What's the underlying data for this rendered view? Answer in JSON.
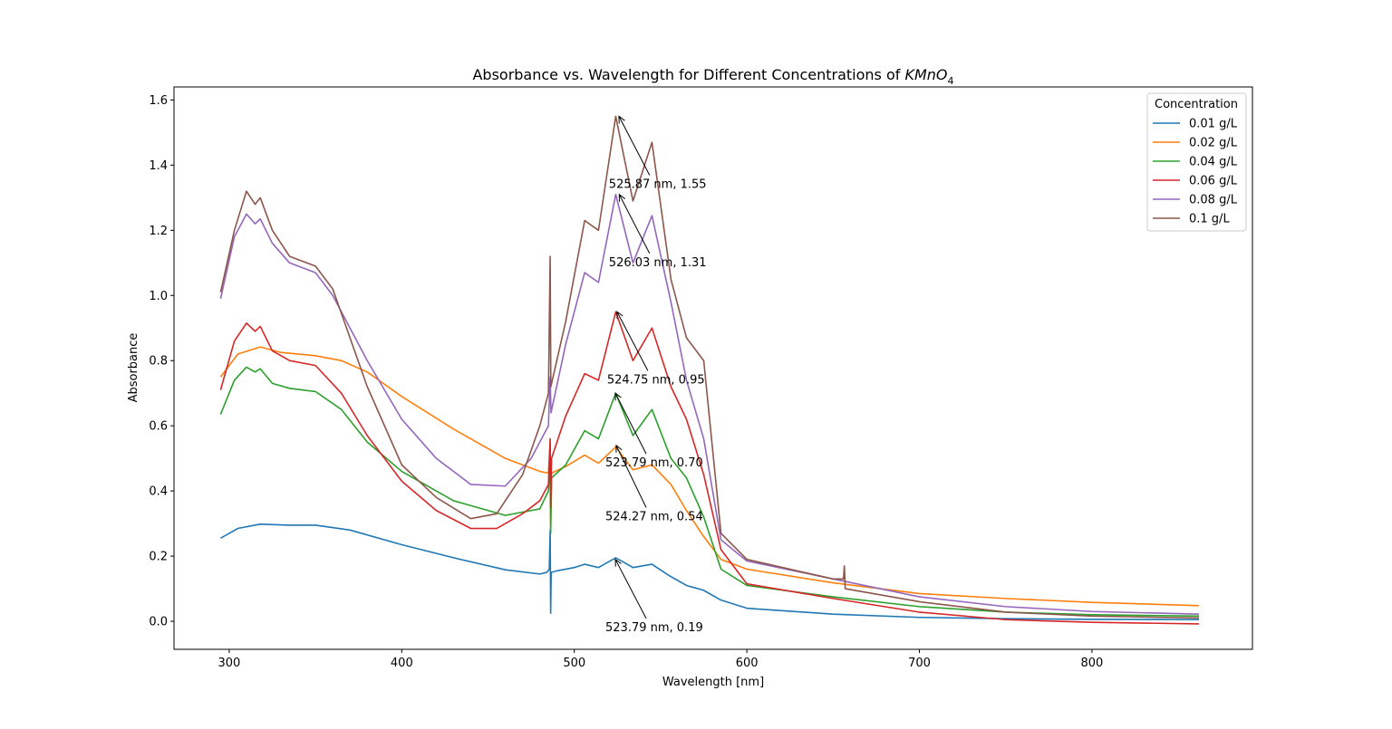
{
  "chart_data": {
    "type": "line",
    "title": {
      "prefix": "Absorbance vs. Wavelength for Different Concentrations of ",
      "formula_main": "KMnO",
      "formula_sub": "4"
    },
    "xlabel": "Wavelength [nm]",
    "ylabel": "Absorbance",
    "xlim": [
      268,
      893
    ],
    "ylim": [
      -0.086,
      1.64
    ],
    "xticks": [
      300,
      400,
      500,
      600,
      700,
      800
    ],
    "yticks": [
      0.0,
      0.2,
      0.4,
      0.6,
      0.8,
      1.0,
      1.2,
      1.4,
      1.6
    ],
    "xtick_labels": [
      "300",
      "400",
      "500",
      "600",
      "700",
      "800"
    ],
    "ytick_labels": [
      "0.0",
      "0.2",
      "0.4",
      "0.6",
      "0.8",
      "1.0",
      "1.2",
      "1.4",
      "1.6"
    ],
    "grid": false,
    "legend": {
      "title": "Concentration",
      "position": "top-right"
    },
    "series": [
      {
        "name": "0.01 g/L",
        "color": "#1f77b4",
        "points": [
          [
            295,
            0.255
          ],
          [
            305,
            0.285
          ],
          [
            318,
            0.298
          ],
          [
            335,
            0.295
          ],
          [
            350,
            0.295
          ],
          [
            370,
            0.28
          ],
          [
            400,
            0.235
          ],
          [
            430,
            0.195
          ],
          [
            460,
            0.158
          ],
          [
            480,
            0.145
          ],
          [
            484,
            0.15
          ],
          [
            485.5,
            0.16
          ],
          [
            486,
            0.28
          ],
          [
            486.3,
            0.025
          ],
          [
            486.6,
            0.15
          ],
          [
            490,
            0.155
          ],
          [
            500,
            0.165
          ],
          [
            506,
            0.175
          ],
          [
            514,
            0.165
          ],
          [
            524,
            0.195
          ],
          [
            534,
            0.165
          ],
          [
            545,
            0.175
          ],
          [
            555,
            0.14
          ],
          [
            565,
            0.11
          ],
          [
            575,
            0.095
          ],
          [
            585,
            0.065
          ],
          [
            600,
            0.04
          ],
          [
            650,
            0.022
          ],
          [
            700,
            0.012
          ],
          [
            750,
            0.008
          ],
          [
            800,
            0.006
          ],
          [
            862,
            0.005
          ]
        ]
      },
      {
        "name": "0.02 g/L",
        "color": "#ff7f0e",
        "points": [
          [
            295,
            0.75
          ],
          [
            305,
            0.82
          ],
          [
            318,
            0.842
          ],
          [
            330,
            0.825
          ],
          [
            350,
            0.815
          ],
          [
            365,
            0.8
          ],
          [
            380,
            0.765
          ],
          [
            400,
            0.69
          ],
          [
            430,
            0.59
          ],
          [
            460,
            0.5
          ],
          [
            480,
            0.46
          ],
          [
            485,
            0.455
          ],
          [
            486,
            0.55
          ],
          [
            486.3,
            0.29
          ],
          [
            486.8,
            0.455
          ],
          [
            495,
            0.475
          ],
          [
            506,
            0.51
          ],
          [
            514,
            0.485
          ],
          [
            524,
            0.535
          ],
          [
            534,
            0.465
          ],
          [
            545,
            0.48
          ],
          [
            556,
            0.42
          ],
          [
            565,
            0.34
          ],
          [
            575,
            0.26
          ],
          [
            585,
            0.19
          ],
          [
            600,
            0.16
          ],
          [
            650,
            0.118
          ],
          [
            700,
            0.085
          ],
          [
            750,
            0.07
          ],
          [
            800,
            0.058
          ],
          [
            862,
            0.048
          ]
        ]
      },
      {
        "name": "0.04 g/L",
        "color": "#2ca02c",
        "points": [
          [
            295,
            0.635
          ],
          [
            303,
            0.74
          ],
          [
            310,
            0.78
          ],
          [
            315,
            0.765
          ],
          [
            318,
            0.775
          ],
          [
            325,
            0.73
          ],
          [
            335,
            0.715
          ],
          [
            350,
            0.705
          ],
          [
            365,
            0.65
          ],
          [
            380,
            0.55
          ],
          [
            400,
            0.46
          ],
          [
            430,
            0.37
          ],
          [
            460,
            0.325
          ],
          [
            480,
            0.345
          ],
          [
            485,
            0.4
          ],
          [
            486,
            0.5
          ],
          [
            486.3,
            0.27
          ],
          [
            486.8,
            0.44
          ],
          [
            495,
            0.48
          ],
          [
            506,
            0.585
          ],
          [
            514,
            0.56
          ],
          [
            524,
            0.7
          ],
          [
            534,
            0.57
          ],
          [
            545,
            0.65
          ],
          [
            556,
            0.5
          ],
          [
            565,
            0.44
          ],
          [
            575,
            0.32
          ],
          [
            585,
            0.16
          ],
          [
            600,
            0.11
          ],
          [
            650,
            0.075
          ],
          [
            700,
            0.045
          ],
          [
            750,
            0.028
          ],
          [
            800,
            0.02
          ],
          [
            862,
            0.016
          ]
        ]
      },
      {
        "name": "0.06 g/L",
        "color": "#d62728",
        "points": [
          [
            295,
            0.71
          ],
          [
            303,
            0.86
          ],
          [
            310,
            0.915
          ],
          [
            315,
            0.89
          ],
          [
            318,
            0.905
          ],
          [
            325,
            0.83
          ],
          [
            335,
            0.8
          ],
          [
            350,
            0.785
          ],
          [
            365,
            0.7
          ],
          [
            380,
            0.57
          ],
          [
            400,
            0.43
          ],
          [
            420,
            0.34
          ],
          [
            440,
            0.285
          ],
          [
            455,
            0.285
          ],
          [
            470,
            0.33
          ],
          [
            480,
            0.37
          ],
          [
            485,
            0.42
          ],
          [
            486,
            0.56
          ],
          [
            486.3,
            0.35
          ],
          [
            486.8,
            0.5
          ],
          [
            495,
            0.63
          ],
          [
            506,
            0.76
          ],
          [
            514,
            0.74
          ],
          [
            524,
            0.95
          ],
          [
            534,
            0.8
          ],
          [
            545,
            0.9
          ],
          [
            556,
            0.72
          ],
          [
            565,
            0.62
          ],
          [
            575,
            0.45
          ],
          [
            585,
            0.22
          ],
          [
            600,
            0.115
          ],
          [
            650,
            0.07
          ],
          [
            700,
            0.028
          ],
          [
            750,
            0.005
          ],
          [
            800,
            -0.003
          ],
          [
            862,
            -0.008
          ]
        ]
      },
      {
        "name": "0.08 g/L",
        "color": "#9467bd",
        "points": [
          [
            295,
            0.99
          ],
          [
            303,
            1.18
          ],
          [
            310,
            1.25
          ],
          [
            315,
            1.22
          ],
          [
            318,
            1.235
          ],
          [
            325,
            1.16
          ],
          [
            335,
            1.1
          ],
          [
            350,
            1.07
          ],
          [
            360,
            1.0
          ],
          [
            380,
            0.8
          ],
          [
            400,
            0.62
          ],
          [
            420,
            0.5
          ],
          [
            440,
            0.42
          ],
          [
            460,
            0.415
          ],
          [
            475,
            0.5
          ],
          [
            485,
            0.6
          ],
          [
            486,
            0.75
          ],
          [
            486.5,
            0.64
          ],
          [
            495,
            0.85
          ],
          [
            506,
            1.07
          ],
          [
            514,
            1.04
          ],
          [
            524,
            1.31
          ],
          [
            534,
            1.1
          ],
          [
            545,
            1.245
          ],
          [
            556,
            0.98
          ],
          [
            565,
            0.74
          ],
          [
            575,
            0.56
          ],
          [
            585,
            0.25
          ],
          [
            600,
            0.185
          ],
          [
            650,
            0.13
          ],
          [
            700,
            0.075
          ],
          [
            750,
            0.045
          ],
          [
            800,
            0.03
          ],
          [
            862,
            0.022
          ]
        ]
      },
      {
        "name": "0.1 g/L",
        "color": "#8c564b",
        "points": [
          [
            295,
            1.01
          ],
          [
            303,
            1.2
          ],
          [
            310,
            1.32
          ],
          [
            315,
            1.28
          ],
          [
            318,
            1.3
          ],
          [
            325,
            1.2
          ],
          [
            335,
            1.12
          ],
          [
            350,
            1.09
          ],
          [
            360,
            1.02
          ],
          [
            380,
            0.72
          ],
          [
            400,
            0.48
          ],
          [
            420,
            0.38
          ],
          [
            440,
            0.315
          ],
          [
            455,
            0.33
          ],
          [
            470,
            0.45
          ],
          [
            480,
            0.6
          ],
          [
            485,
            0.7
          ],
          [
            486,
            1.12
          ],
          [
            486.4,
            0.72
          ],
          [
            495,
            0.92
          ],
          [
            506,
            1.23
          ],
          [
            514,
            1.2
          ],
          [
            524,
            1.55
          ],
          [
            534,
            1.29
          ],
          [
            545,
            1.47
          ],
          [
            556,
            1.05
          ],
          [
            565,
            0.87
          ],
          [
            575,
            0.8
          ],
          [
            585,
            0.27
          ],
          [
            600,
            0.19
          ],
          [
            650,
            0.13
          ],
          [
            656,
            0.13
          ],
          [
            656.5,
            0.17
          ],
          [
            657,
            0.1
          ],
          [
            700,
            0.06
          ],
          [
            750,
            0.028
          ],
          [
            800,
            0.016
          ],
          [
            862,
            0.01
          ]
        ]
      }
    ],
    "annotations": [
      {
        "text": "525.87 nm, 1.55",
        "point": [
          525.87,
          1.55
        ],
        "text_at": [
          520,
          1.33
        ]
      },
      {
        "text": "526.03 nm, 1.31",
        "point": [
          526.03,
          1.31
        ],
        "text_at": [
          520,
          1.09
        ]
      },
      {
        "text": "524.75 nm, 0.95",
        "point": [
          524.75,
          0.95
        ],
        "text_at": [
          519,
          0.73
        ]
      },
      {
        "text": "523.79 nm, 0.70",
        "point": [
          523.79,
          0.7
        ],
        "text_at": [
          518,
          0.475
        ]
      },
      {
        "text": "524.27 nm, 0.54",
        "point": [
          524.27,
          0.54
        ],
        "text_at": [
          518,
          0.31
        ]
      },
      {
        "text": "523.79 nm, 0.19",
        "point": [
          523.79,
          0.19
        ],
        "text_at": [
          518,
          -0.03
        ]
      }
    ]
  }
}
